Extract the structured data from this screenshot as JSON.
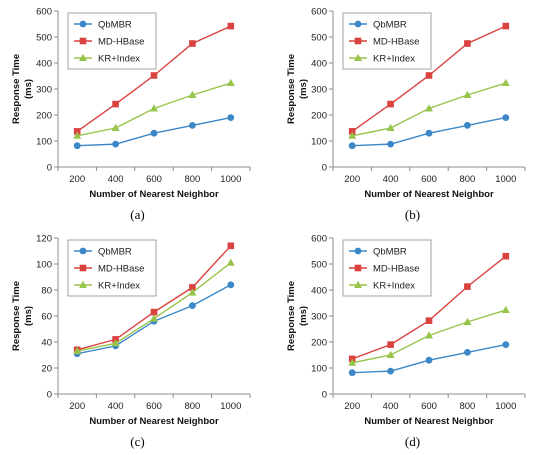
{
  "chart_data": [
    {
      "type": "line",
      "caption": "(a)",
      "xlabel": "Number of Nearest Neighbor",
      "ylabel": "Response Time\n(ms)",
      "x": [
        200,
        400,
        600,
        800,
        1000
      ],
      "ylim": [
        0,
        600
      ],
      "yticks": [
        0,
        100,
        200,
        300,
        400,
        500,
        600
      ],
      "grid": false,
      "legend": "top-left",
      "series": [
        {
          "name": "QbMBR",
          "color": "#3b87c8",
          "marker": "circle",
          "values": [
            82,
            88,
            130,
            160,
            190
          ]
        },
        {
          "name": "MD-HBase",
          "color": "#d9423f",
          "marker": "square",
          "values": [
            137,
            242,
            352,
            475,
            542
          ]
        },
        {
          "name": "KR+Index",
          "color": "#97c44a",
          "marker": "triangle",
          "values": [
            120,
            150,
            225,
            277,
            323
          ]
        }
      ]
    },
    {
      "type": "line",
      "caption": "(b)",
      "xlabel": "Number of Nearest Neighbor",
      "ylabel": "Response Time\n(ms)",
      "x": [
        200,
        400,
        600,
        800,
        1000
      ],
      "ylim": [
        0,
        600
      ],
      "yticks": [
        0,
        100,
        200,
        300,
        400,
        500,
        600
      ],
      "grid": false,
      "legend": "top-left",
      "series": [
        {
          "name": "QbMBR",
          "color": "#3b87c8",
          "marker": "circle",
          "values": [
            82,
            88,
            130,
            160,
            190
          ]
        },
        {
          "name": "MD-HBase",
          "color": "#d9423f",
          "marker": "square",
          "values": [
            137,
            242,
            352,
            475,
            542
          ]
        },
        {
          "name": "KR+Index",
          "color": "#97c44a",
          "marker": "triangle",
          "values": [
            120,
            150,
            225,
            277,
            323
          ]
        }
      ]
    },
    {
      "type": "line",
      "caption": "(c)",
      "xlabel": "Number of Nearest Neighbor",
      "ylabel": "Response Time\n(ms)",
      "x": [
        200,
        400,
        600,
        800,
        1000
      ],
      "ylim": [
        0,
        120
      ],
      "yticks": [
        0,
        20,
        40,
        60,
        80,
        100,
        120
      ],
      "grid": false,
      "legend": "top-left",
      "series": [
        {
          "name": "QbMBR",
          "color": "#3b87c8",
          "marker": "circle",
          "values": [
            31,
            37,
            56,
            68,
            84
          ]
        },
        {
          "name": "MD-HBase",
          "color": "#d9423f",
          "marker": "square",
          "values": [
            34,
            42,
            63,
            82,
            114
          ]
        },
        {
          "name": "KR+Index",
          "color": "#97c44a",
          "marker": "triangle",
          "values": [
            33,
            39,
            58,
            78,
            101
          ]
        }
      ]
    },
    {
      "type": "line",
      "caption": "(d)",
      "xlabel": "Number of Nearest Neighbor",
      "ylabel": "Response Time\n(ms)",
      "x": [
        200,
        400,
        600,
        800,
        1000
      ],
      "ylim": [
        0,
        600
      ],
      "yticks": [
        0,
        100,
        200,
        300,
        400,
        500,
        600
      ],
      "grid": false,
      "legend": "top-left",
      "series": [
        {
          "name": "QbMBR",
          "color": "#3b87c8",
          "marker": "circle",
          "values": [
            82,
            88,
            130,
            160,
            190
          ]
        },
        {
          "name": "MD-HBase",
          "color": "#d9423f",
          "marker": "square",
          "values": [
            135,
            190,
            282,
            413,
            530
          ]
        },
        {
          "name": "KR+Index",
          "color": "#97c44a",
          "marker": "triangle",
          "values": [
            120,
            150,
            225,
            277,
            323
          ]
        }
      ]
    }
  ]
}
